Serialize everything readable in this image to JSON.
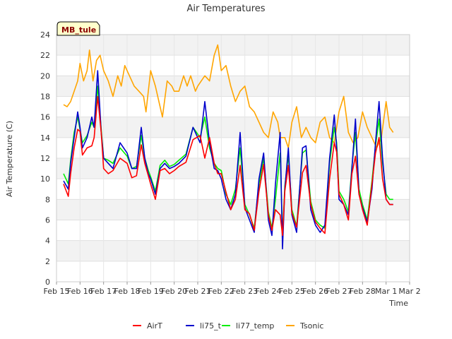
{
  "chart_data": {
    "type": "line",
    "title": "Air Temperatures",
    "xlabel": "Time",
    "ylabel": "Air Temperature (C)",
    "site_label": "MB_tule",
    "xlim": [
      0,
      15
    ],
    "ylim": [
      0,
      24
    ],
    "x_ticks": [
      {
        "x": 0,
        "label": "Feb 15"
      },
      {
        "x": 1,
        "label": "Feb 16"
      },
      {
        "x": 2,
        "label": "Feb 17"
      },
      {
        "x": 3,
        "label": "Feb 18"
      },
      {
        "x": 4,
        "label": "Feb 19"
      },
      {
        "x": 5,
        "label": "Feb 20"
      },
      {
        "x": 6,
        "label": "Feb 21"
      },
      {
        "x": 7,
        "label": "Feb 22"
      },
      {
        "x": 8,
        "label": "Feb 23"
      },
      {
        "x": 9,
        "label": "Feb 24"
      },
      {
        "x": 10,
        "label": "Feb 25"
      },
      {
        "x": 11,
        "label": "Feb 26"
      },
      {
        "x": 12,
        "label": "Feb 27"
      },
      {
        "x": 13,
        "label": "Feb 28"
      },
      {
        "x": 14,
        "label": "Mar 1"
      },
      {
        "x": 15,
        "label": "Mar 2"
      }
    ],
    "y_ticks": [
      0,
      2,
      4,
      6,
      8,
      10,
      12,
      14,
      16,
      18,
      20,
      22,
      24
    ],
    "grid": true,
    "legend_position": "bottom",
    "series": [
      {
        "name": "AirT",
        "color": "#ff0000",
        "x": [
          0.3,
          0.5,
          0.6,
          0.75,
          0.9,
          1.0,
          1.1,
          1.3,
          1.5,
          1.6,
          1.75,
          1.9,
          2.0,
          2.2,
          2.4,
          2.7,
          3.0,
          3.2,
          3.4,
          3.6,
          3.75,
          3.9,
          4.0,
          4.2,
          4.4,
          4.6,
          4.8,
          5.0,
          5.2,
          5.5,
          5.8,
          6.1,
          6.3,
          6.5,
          6.7,
          6.85,
          7.0,
          7.2,
          7.4,
          7.6,
          7.8,
          8.0,
          8.2,
          8.4,
          8.6,
          8.8,
          9.0,
          9.15,
          9.3,
          9.5,
          9.6,
          9.7,
          9.85,
          10.0,
          10.2,
          10.45,
          10.6,
          10.8,
          11.0,
          11.2,
          11.4,
          11.6,
          11.8,
          11.9,
          12.0,
          12.2,
          12.4,
          12.55,
          12.7,
          12.85,
          13.0,
          13.2,
          13.4,
          13.55,
          13.7,
          13.85,
          14.0,
          14.15,
          14.3
        ],
        "y": [
          9.5,
          8.3,
          10.5,
          13.0,
          14.8,
          14.6,
          12.3,
          13.0,
          13.2,
          14.0,
          18.0,
          14.5,
          11.0,
          10.5,
          10.8,
          12.0,
          11.5,
          10.1,
          10.3,
          13.3,
          11.5,
          10.3,
          9.5,
          8.0,
          10.8,
          11.0,
          10.5,
          10.8,
          11.2,
          11.6,
          13.8,
          14.2,
          12.0,
          14.0,
          11.5,
          10.5,
          10.5,
          8.7,
          7.0,
          8.0,
          11.3,
          7.0,
          6.6,
          5.0,
          8.8,
          11.4,
          6.5,
          5.0,
          7.0,
          6.5,
          4.5,
          8.8,
          11.3,
          6.7,
          5.3,
          10.6,
          11.3,
          7.5,
          5.8,
          5.2,
          4.7,
          10.0,
          13.5,
          12.6,
          8.5,
          7.5,
          6.0,
          10.5,
          12.2,
          8.5,
          7.0,
          5.5,
          9.5,
          12.5,
          14.0,
          10.0,
          8.0,
          7.5,
          7.5
        ]
      },
      {
        "name": "li75_t",
        "color": "#0000cc",
        "x": [
          0.3,
          0.5,
          0.6,
          0.75,
          0.9,
          1.0,
          1.1,
          1.3,
          1.5,
          1.6,
          1.75,
          1.9,
          2.0,
          2.2,
          2.4,
          2.7,
          3.0,
          3.2,
          3.4,
          3.6,
          3.75,
          3.9,
          4.0,
          4.2,
          4.4,
          4.6,
          4.8,
          5.0,
          5.2,
          5.5,
          5.8,
          6.1,
          6.3,
          6.5,
          6.7,
          6.85,
          7.0,
          7.2,
          7.4,
          7.6,
          7.8,
          8.0,
          8.2,
          8.4,
          8.6,
          8.8,
          9.0,
          9.15,
          9.3,
          9.5,
          9.6,
          9.7,
          9.85,
          10.0,
          10.2,
          10.45,
          10.6,
          10.8,
          11.0,
          11.2,
          11.4,
          11.6,
          11.8,
          11.9,
          12.0,
          12.2,
          12.4,
          12.55,
          12.7,
          12.85,
          13.0,
          13.2,
          13.4,
          13.55,
          13.7,
          13.85,
          14.0,
          14.15,
          14.3
        ],
        "y": [
          9.8,
          9.0,
          11.5,
          14.0,
          16.5,
          15.0,
          13.0,
          14.0,
          16.0,
          15.0,
          20.5,
          14.5,
          12.0,
          11.5,
          11.0,
          13.5,
          12.5,
          11.0,
          11.0,
          15.0,
          12.0,
          10.5,
          10.0,
          8.5,
          11.0,
          11.5,
          11.0,
          11.2,
          11.5,
          12.2,
          15.0,
          13.5,
          17.5,
          13.5,
          11.0,
          10.8,
          10.0,
          8.0,
          7.0,
          8.5,
          14.5,
          7.2,
          6.0,
          4.8,
          10.0,
          12.5,
          6.0,
          4.5,
          9.5,
          14.5,
          3.2,
          9.0,
          13.0,
          6.5,
          4.8,
          13.0,
          13.2,
          7.0,
          5.5,
          4.8,
          5.5,
          12.0,
          16.2,
          13.0,
          8.0,
          7.5,
          6.5,
          11.0,
          15.8,
          8.5,
          7.2,
          5.8,
          9.0,
          13.5,
          17.5,
          12.0,
          8.0,
          7.5,
          7.5
        ]
      },
      {
        "name": "li77_temp",
        "color": "#00ee00",
        "x": [
          0.3,
          0.5,
          0.6,
          0.75,
          0.9,
          1.0,
          1.1,
          1.3,
          1.5,
          1.6,
          1.75,
          1.9,
          2.0,
          2.2,
          2.4,
          2.7,
          3.0,
          3.2,
          3.4,
          3.6,
          3.75,
          3.9,
          4.0,
          4.2,
          4.4,
          4.6,
          4.8,
          5.0,
          5.2,
          5.5,
          5.8,
          6.1,
          6.3,
          6.5,
          6.7,
          6.85,
          7.0,
          7.2,
          7.4,
          7.6,
          7.8,
          8.0,
          8.2,
          8.4,
          8.6,
          8.8,
          9.0,
          9.15,
          9.3,
          9.5,
          9.6,
          9.7,
          9.85,
          10.0,
          10.2,
          10.45,
          10.6,
          10.8,
          11.0,
          11.2,
          11.4,
          11.6,
          11.8,
          11.9,
          12.0,
          12.2,
          12.4,
          12.55,
          12.7,
          12.85,
          13.0,
          13.2,
          13.4,
          13.55,
          13.7,
          13.85,
          14.0,
          14.15,
          14.3
        ],
        "y": [
          10.5,
          9.5,
          11.8,
          14.5,
          16.0,
          14.8,
          13.5,
          14.2,
          15.5,
          15.0,
          19.0,
          14.8,
          12.0,
          11.8,
          11.5,
          13.0,
          12.2,
          11.0,
          11.2,
          14.2,
          12.0,
          10.8,
          10.2,
          8.8,
          11.3,
          11.8,
          11.2,
          11.4,
          11.8,
          12.4,
          15.0,
          14.0,
          16.0,
          13.0,
          11.5,
          11.0,
          10.8,
          8.5,
          7.5,
          9.0,
          13.0,
          7.5,
          6.5,
          5.2,
          9.5,
          12.0,
          6.8,
          5.2,
          8.0,
          12.5,
          4.5,
          9.3,
          12.3,
          7.0,
          5.4,
          12.5,
          12.8,
          7.8,
          6.0,
          5.5,
          5.2,
          11.5,
          15.0,
          13.5,
          8.8,
          8.0,
          6.8,
          11.2,
          14.5,
          9.0,
          7.5,
          6.0,
          9.8,
          13.2,
          15.8,
          11.5,
          8.5,
          8.0,
          8.0
        ]
      },
      {
        "name": "Tsonic",
        "color": "#ffa500",
        "x": [
          0.3,
          0.45,
          0.6,
          0.75,
          0.9,
          1.0,
          1.15,
          1.3,
          1.4,
          1.55,
          1.7,
          1.85,
          2.0,
          2.2,
          2.4,
          2.6,
          2.75,
          2.9,
          3.1,
          3.3,
          3.5,
          3.7,
          3.8,
          4.0,
          4.2,
          4.35,
          4.5,
          4.7,
          4.9,
          5.0,
          5.2,
          5.4,
          5.55,
          5.7,
          5.9,
          6.0,
          6.15,
          6.3,
          6.5,
          6.7,
          6.85,
          7.0,
          7.2,
          7.4,
          7.6,
          7.8,
          8.0,
          8.2,
          8.4,
          8.6,
          8.8,
          9.0,
          9.2,
          9.4,
          9.5,
          9.7,
          9.85,
          10.0,
          10.2,
          10.4,
          10.6,
          10.8,
          11.0,
          11.2,
          11.4,
          11.6,
          11.8,
          12.0,
          12.2,
          12.4,
          12.6,
          12.8,
          13.0,
          13.2,
          13.4,
          13.6,
          13.8,
          14.0,
          14.15,
          14.3
        ],
        "y": [
          17.2,
          17.0,
          17.5,
          18.5,
          19.5,
          21.2,
          19.5,
          20.5,
          22.5,
          19.5,
          21.5,
          22.0,
          20.5,
          19.5,
          18.0,
          20.0,
          19.0,
          21.0,
          20.0,
          19.0,
          18.5,
          18.0,
          16.5,
          20.5,
          19.0,
          17.5,
          16.0,
          19.5,
          19.0,
          18.5,
          18.5,
          20.0,
          19.0,
          20.0,
          18.5,
          19.0,
          19.5,
          20.0,
          19.5,
          22.0,
          23.0,
          20.5,
          21.0,
          19.0,
          17.5,
          18.5,
          19.0,
          17.0,
          16.5,
          15.5,
          14.5,
          14.0,
          16.5,
          15.5,
          14.0,
          14.0,
          13.0,
          15.5,
          17.0,
          14.0,
          15.0,
          14.0,
          13.5,
          15.5,
          16.0,
          14.0,
          13.5,
          16.5,
          18.0,
          14.5,
          13.5,
          14.0,
          16.5,
          15.0,
          14.0,
          13.0,
          14.0,
          17.5,
          15.0,
          14.5
        ]
      }
    ]
  }
}
